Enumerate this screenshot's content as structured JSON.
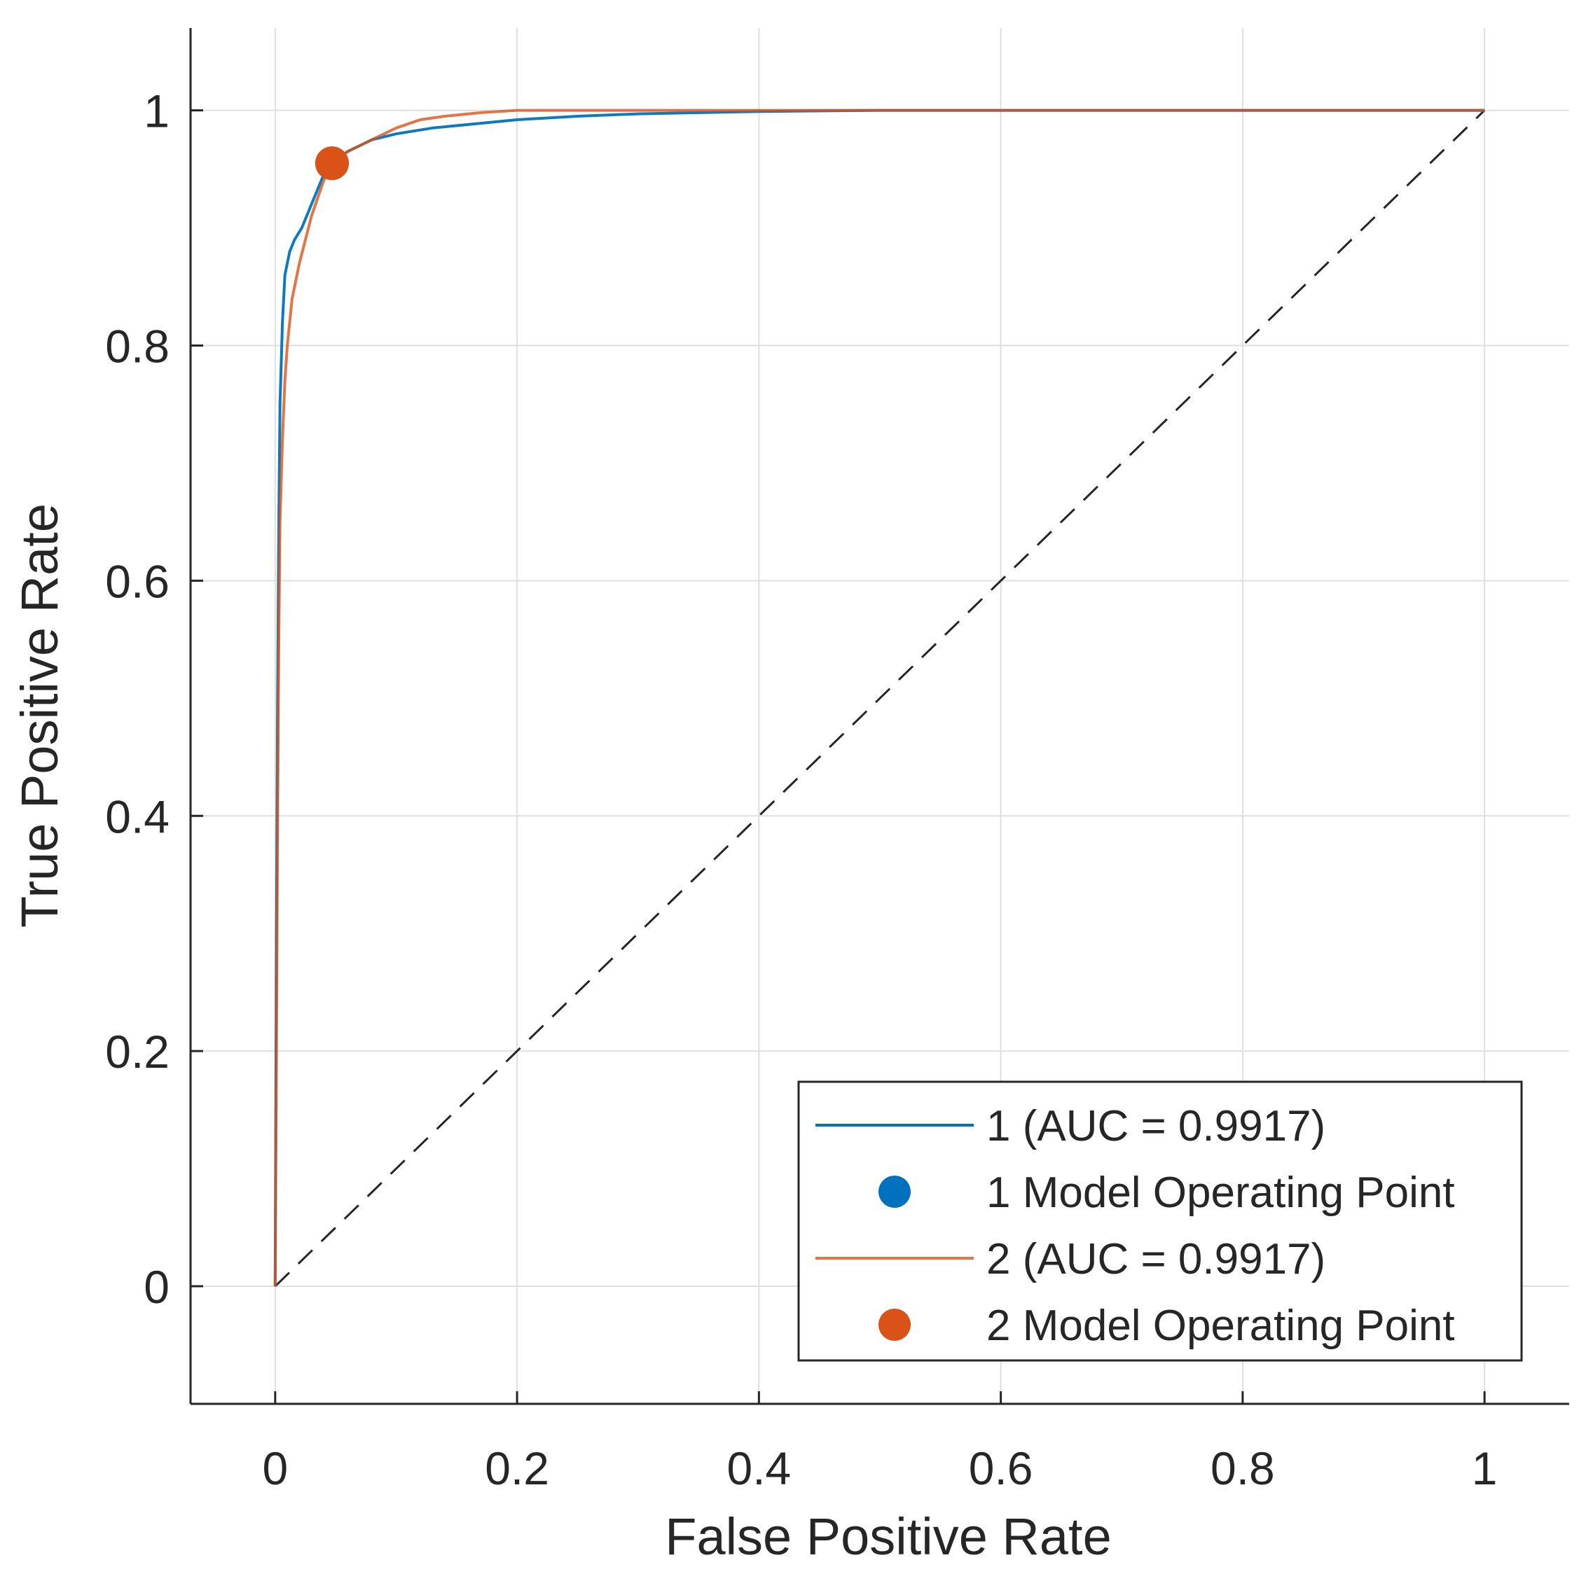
{
  "chart_data": {
    "type": "line",
    "xlabel": "False Positive Rate",
    "ylabel": "True Positive Rate",
    "xlim": [
      -0.07,
      1.07
    ],
    "ylim": [
      -0.1,
      1.07
    ],
    "x_ticks": [
      0,
      0.2,
      0.4,
      0.6,
      0.8,
      1
    ],
    "x_tick_labels": [
      "0",
      "0.2",
      "0.4",
      "0.6",
      "0.8",
      "1"
    ],
    "y_ticks": [
      0,
      0.2,
      0.4,
      0.6,
      0.8,
      1
    ],
    "y_tick_labels": [
      "0",
      "0.2",
      "0.4",
      "0.6",
      "0.8",
      "1"
    ],
    "grid": true,
    "legend_position": "bottom-right",
    "colors": {
      "series1": "#0072BD",
      "series2": "#D95319",
      "diagonal": "#262626",
      "grid": "#dfdfdf",
      "axis": "#262626"
    },
    "series": [
      {
        "name": "1 (AUC = 0.9917)",
        "color": "#0072BD",
        "x": [
          0,
          0.001,
          0.002,
          0.003,
          0.004,
          0.006,
          0.008,
          0.012,
          0.016,
          0.022,
          0.03,
          0.04,
          0.047,
          0.06,
          0.08,
          0.1,
          0.13,
          0.16,
          0.2,
          0.25,
          0.3,
          0.4,
          0.5,
          0.7,
          1.0
        ],
        "y": [
          0,
          0.3,
          0.5,
          0.65,
          0.75,
          0.82,
          0.86,
          0.88,
          0.89,
          0.9,
          0.92,
          0.945,
          0.955,
          0.965,
          0.975,
          0.98,
          0.985,
          0.988,
          0.992,
          0.995,
          0.997,
          0.999,
          1.0,
          1.0,
          1.0
        ]
      },
      {
        "name": "2 (AUC = 0.9917)",
        "color": "#D95319",
        "x": [
          0,
          0.001,
          0.002,
          0.003,
          0.004,
          0.006,
          0.008,
          0.01,
          0.014,
          0.02,
          0.03,
          0.04,
          0.047,
          0.06,
          0.08,
          0.1,
          0.12,
          0.14,
          0.17,
          0.2,
          0.3,
          0.5,
          1.0
        ],
        "y": [
          0,
          0.2,
          0.4,
          0.55,
          0.65,
          0.72,
          0.77,
          0.8,
          0.84,
          0.87,
          0.91,
          0.94,
          0.955,
          0.965,
          0.975,
          0.985,
          0.992,
          0.995,
          0.998,
          1.0,
          1.0,
          1.0,
          1.0
        ]
      }
    ],
    "operating_points": [
      {
        "name": "1 Model Operating Point",
        "color": "#0072BD",
        "x": 0.047,
        "y": 0.955
      },
      {
        "name": "2 Model Operating Point",
        "color": "#D95319",
        "x": 0.047,
        "y": 0.955
      }
    ],
    "diagonal": {
      "x": [
        0,
        1
      ],
      "y": [
        0,
        1
      ],
      "style": "dashed"
    },
    "legend": [
      {
        "label": "1 (AUC = 0.9917)",
        "kind": "line",
        "color": "#0072BD"
      },
      {
        "label": "1 Model Operating Point",
        "kind": "marker",
        "color": "#0072BD"
      },
      {
        "label": "2 (AUC = 0.9917)",
        "kind": "line",
        "color": "#D95319"
      },
      {
        "label": "2 Model Operating Point",
        "kind": "marker",
        "color": "#D95319"
      }
    ]
  }
}
